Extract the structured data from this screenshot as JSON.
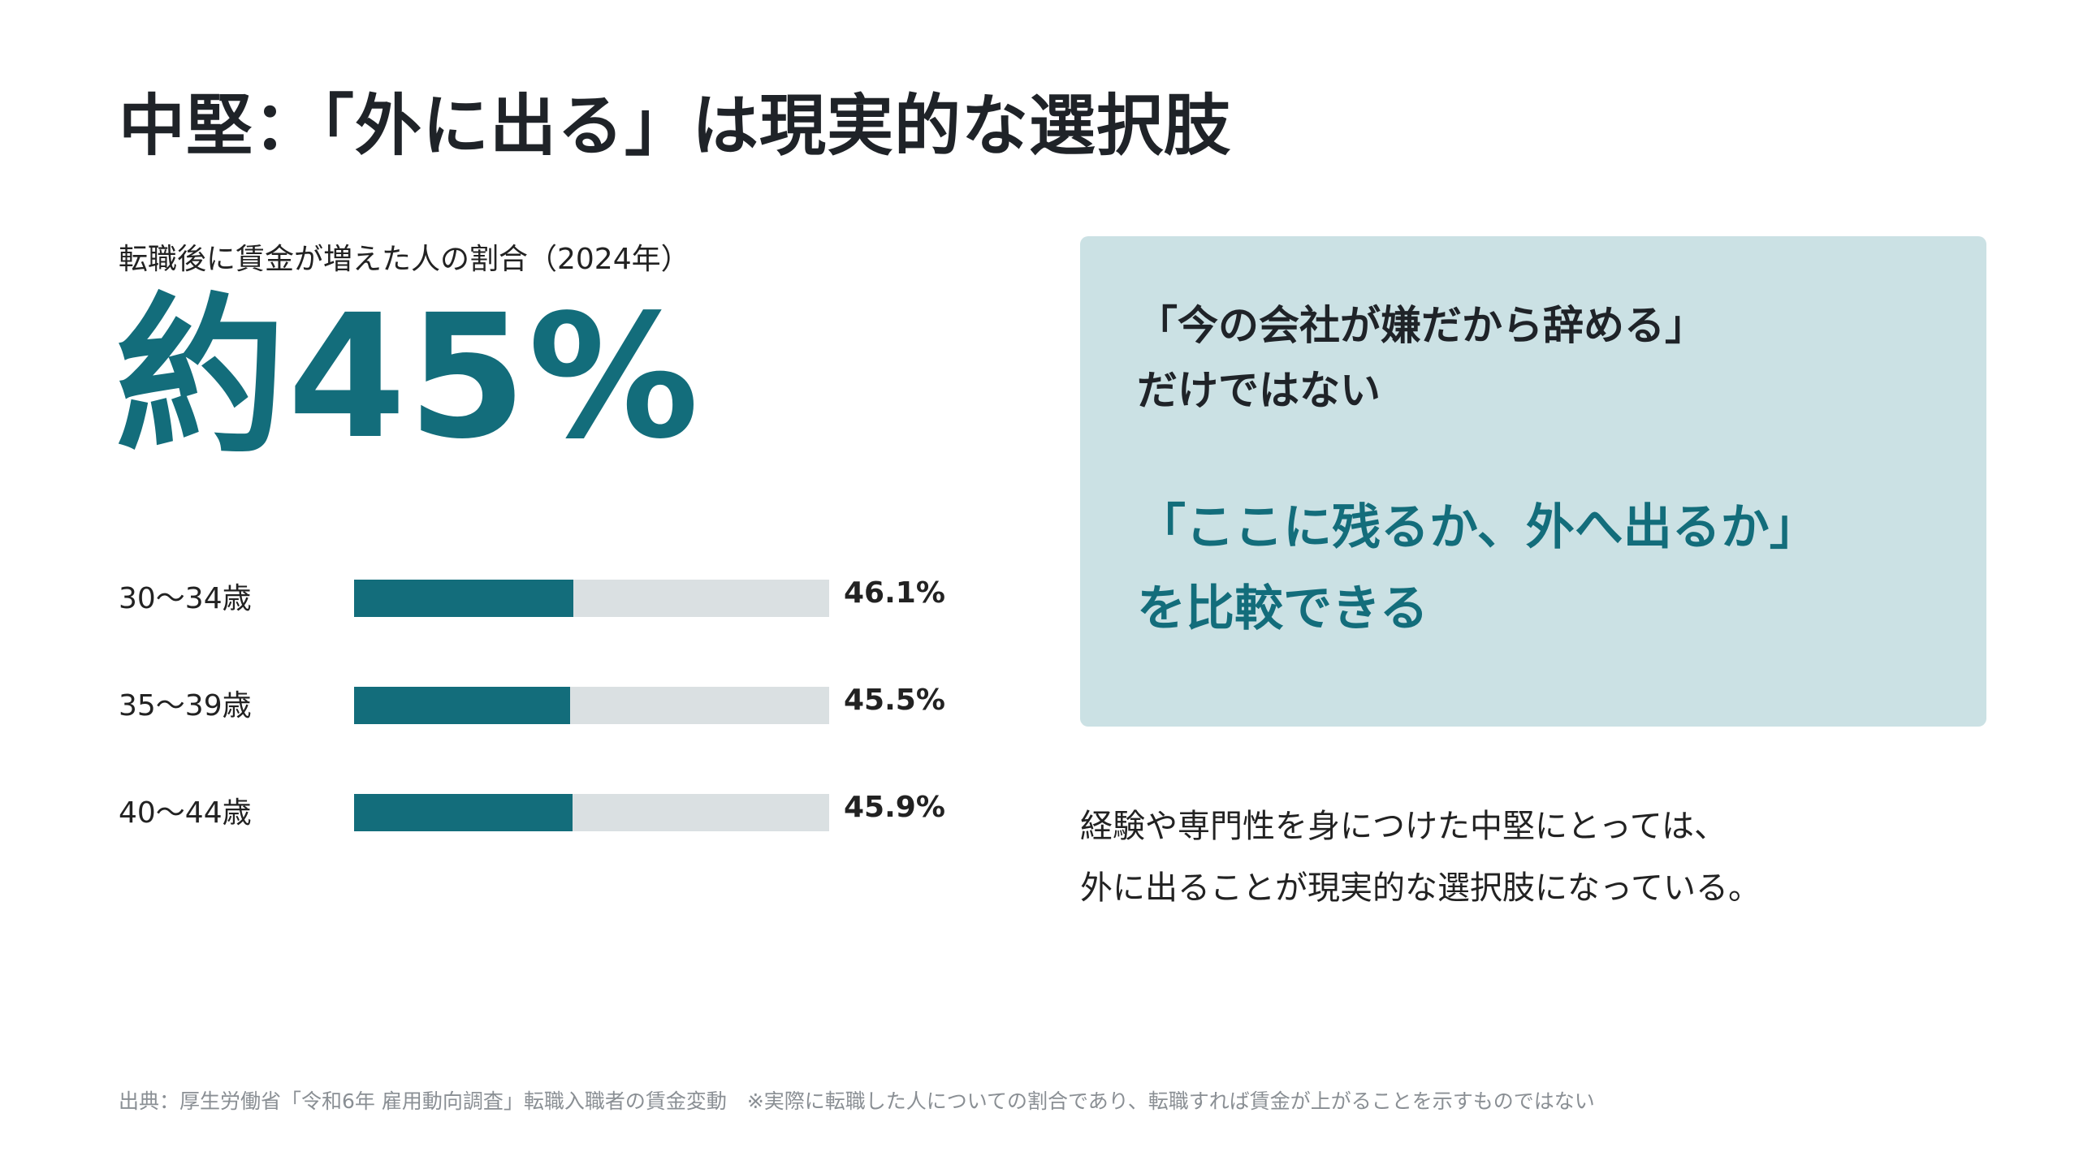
{
  "title": "中堅：「外に出る」は現実的な選択肢",
  "subtitle": "転職後に賃金が増えた人の割合（2024年）",
  "headline": "約45%",
  "chart_data": {
    "type": "bar",
    "orientation": "horizontal",
    "categories": [
      "30〜34歳",
      "35〜39歳",
      "40〜44歳"
    ],
    "values": [
      46.1,
      45.5,
      45.9
    ],
    "value_labels": [
      "46.1%",
      "45.5%",
      "45.9%"
    ],
    "unit": "%",
    "xlim": [
      0,
      100
    ],
    "title": "転職後に賃金が増えた人の割合（2024年）",
    "grid": false,
    "colors": {
      "fill": "#136d7b",
      "track": "#dae0e2"
    }
  },
  "callout": {
    "line1": "「今の会社が嫌だから辞める」",
    "line2": "だけではない",
    "line3": "「ここに残るか、外へ出るか」",
    "line4": "を比較できる"
  },
  "body": {
    "line1": "経験や専門性を身につけた中堅にとっては、",
    "line2": "外に出ることが現実的な選択肢になっている。"
  },
  "footnote": "出典：厚生労働省「令和6年 雇用動向調査」転職入職者の賃金変動　※実際に転職した人についての割合であり、転職すれば賃金が上がることを示すものではない",
  "colors": {
    "accent": "#136d7b",
    "callout_bg": "#cbe1e4",
    "text": "#222222",
    "muted": "#8a8f94"
  }
}
